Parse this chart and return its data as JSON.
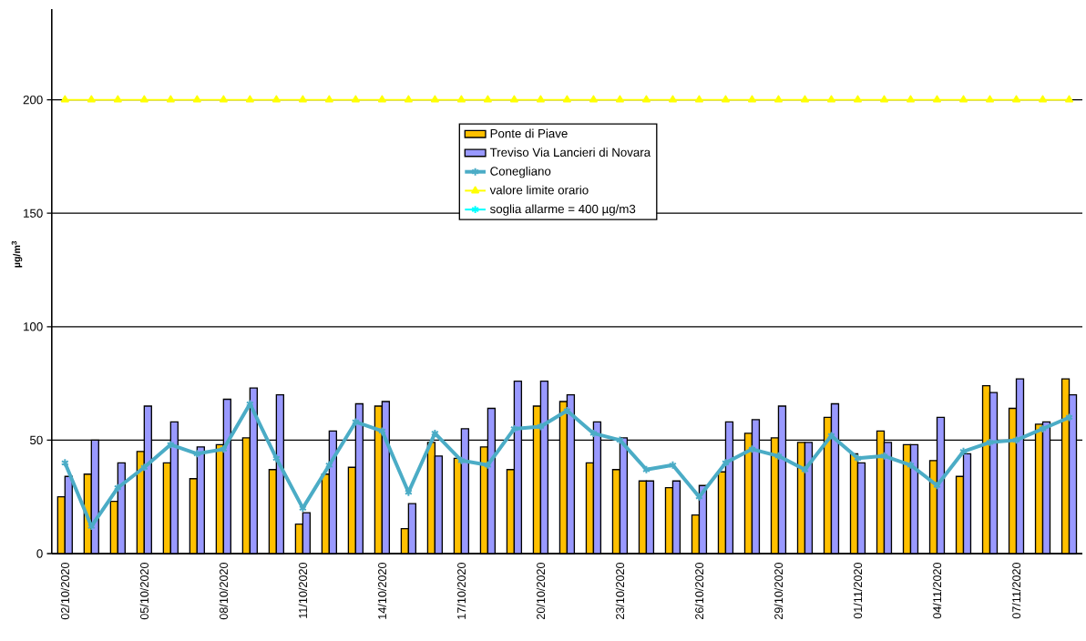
{
  "chart_data": {
    "type": "bar",
    "ylabel": "µg/m$^{3}$",
    "categories": [
      "02/10/2020",
      null,
      null,
      "05/10/2020",
      null,
      null,
      "08/10/2020",
      null,
      null,
      "11/10/2020",
      null,
      null,
      "14/10/2020",
      null,
      null,
      "17/10/2020",
      null,
      null,
      "20/10/2020",
      null,
      null,
      "23/10/2020",
      null,
      null,
      "26/10/2020",
      null,
      null,
      "29/10/2020",
      null,
      null,
      "01/11/2020",
      null,
      null,
      "04/11/2020",
      null,
      null,
      "07/11/2020",
      null,
      null
    ],
    "series": [
      {
        "name": "Ponte di Piave",
        "color": "#ffc000",
        "values": [
          25,
          35,
          23,
          45,
          40,
          33,
          48,
          51,
          37,
          13,
          35,
          38,
          65,
          11,
          49,
          42,
          47,
          37,
          65,
          67,
          40,
          37,
          32,
          29,
          17,
          36,
          53,
          51,
          49,
          60,
          44,
          54,
          48,
          41,
          34,
          74,
          64,
          57,
          77
        ]
      },
      {
        "name": "Treviso Via Lancieri di Novara",
        "color": "#9999ff",
        "values": [
          34,
          50,
          40,
          65,
          58,
          47,
          68,
          73,
          70,
          18,
          54,
          66,
          67,
          22,
          43,
          55,
          64,
          76,
          76,
          70,
          58,
          51,
          32,
          32,
          30,
          58,
          59,
          65,
          49,
          66,
          40,
          49,
          48,
          60,
          44,
          71,
          77,
          58,
          70
        ]
      },
      {
        "name": "Conegliano",
        "type": "line",
        "color": "#4bacc6",
        "marker": "cross",
        "line_style": "solid",
        "values": [
          40,
          12,
          29,
          38,
          48,
          44,
          46,
          66,
          42,
          20,
          39,
          58,
          54,
          27,
          53,
          41,
          39,
          55,
          56,
          63,
          53,
          50,
          37,
          39,
          25,
          40,
          46,
          43,
          37,
          52,
          42,
          43,
          39,
          30,
          45,
          49,
          50,
          55,
          60
        ]
      },
      {
        "name": "valore limite orario",
        "type": "line",
        "color": "#ffff00",
        "marker": "triangle",
        "line_style": "solid",
        "values": [
          200,
          200,
          200,
          200,
          200,
          200,
          200,
          200,
          200,
          200,
          200,
          200,
          200,
          200,
          200,
          200,
          200,
          200,
          200,
          200,
          200,
          200,
          200,
          200,
          200,
          200,
          200,
          200,
          200,
          200,
          200,
          200,
          200,
          200,
          200,
          200,
          200,
          200,
          200
        ]
      },
      {
        "name": "soglia allarme = 400 µg/m3",
        "type": "line",
        "color": "#00ffff",
        "marker": "cross",
        "line_style": "solid",
        "values": [
          null,
          null,
          null,
          null,
          null,
          null,
          null,
          null,
          null,
          null,
          null,
          null,
          null,
          null,
          null,
          null,
          null,
          null,
          null,
          null,
          null,
          null,
          null,
          null,
          null,
          null,
          null,
          null,
          null,
          null,
          null,
          null,
          null,
          null,
          null,
          null,
          null,
          null,
          null
        ]
      }
    ],
    "ylim": [
      0,
      240
    ],
    "yticks": [
      0,
      50,
      100,
      150,
      200
    ],
    "grid": "y",
    "legend": "top"
  }
}
